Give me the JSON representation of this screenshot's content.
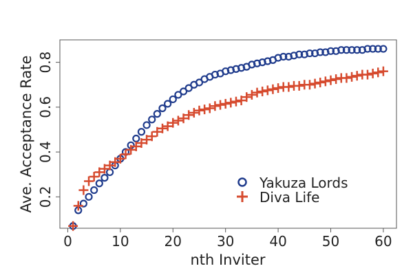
{
  "chart_data": {
    "type": "scatter",
    "xlabel": "nth Inviter",
    "ylabel": "Ave. Acceptance Rate",
    "xlim": [
      -1.5,
      62.5
    ],
    "ylim": [
      0.06,
      0.9
    ],
    "xticks": [
      0,
      10,
      20,
      30,
      40,
      50,
      60
    ],
    "yticks": [
      0.2,
      0.4,
      0.6,
      0.8
    ],
    "xtick_labels": [
      "0",
      "10",
      "20",
      "30",
      "40",
      "50",
      "60"
    ],
    "ytick_labels": [
      "0.2",
      "0.4",
      "0.6",
      "0.8"
    ],
    "legend_position": "bottom-right",
    "grid": false,
    "series": [
      {
        "name": "Yakuza Lords",
        "marker": "circle",
        "color": "#1f3b8c",
        "x": [
          1,
          2,
          3,
          4,
          5,
          6,
          7,
          8,
          9,
          10,
          11,
          12,
          13,
          14,
          15,
          16,
          17,
          18,
          19,
          20,
          21,
          22,
          23,
          24,
          25,
          26,
          27,
          28,
          29,
          30,
          31,
          32,
          33,
          34,
          35,
          36,
          37,
          38,
          39,
          40,
          41,
          42,
          43,
          44,
          45,
          46,
          47,
          48,
          49,
          50,
          51,
          52,
          53,
          54,
          55,
          56,
          57,
          58,
          59,
          60
        ],
        "y": [
          0.07,
          0.14,
          0.17,
          0.2,
          0.23,
          0.26,
          0.285,
          0.31,
          0.34,
          0.37,
          0.4,
          0.43,
          0.46,
          0.49,
          0.52,
          0.545,
          0.57,
          0.595,
          0.615,
          0.635,
          0.655,
          0.67,
          0.685,
          0.7,
          0.71,
          0.725,
          0.735,
          0.745,
          0.75,
          0.76,
          0.765,
          0.77,
          0.775,
          0.78,
          0.79,
          0.795,
          0.8,
          0.805,
          0.81,
          0.82,
          0.825,
          0.825,
          0.83,
          0.835,
          0.835,
          0.84,
          0.84,
          0.845,
          0.845,
          0.85,
          0.85,
          0.855,
          0.855,
          0.855,
          0.855,
          0.855,
          0.86,
          0.86,
          0.86,
          0.86
        ]
      },
      {
        "name": "Diva Life",
        "marker": "plus",
        "color": "#d64a2e",
        "x": [
          1,
          2,
          3,
          4,
          5,
          6,
          7,
          8,
          9,
          10,
          11,
          12,
          13,
          14,
          15,
          16,
          17,
          18,
          19,
          20,
          21,
          22,
          23,
          24,
          25,
          26,
          27,
          28,
          29,
          30,
          31,
          32,
          33,
          34,
          35,
          36,
          37,
          38,
          39,
          40,
          41,
          42,
          43,
          44,
          45,
          46,
          47,
          48,
          49,
          50,
          51,
          52,
          53,
          54,
          55,
          56,
          57,
          58,
          59,
          60
        ],
        "y": [
          0.07,
          0.16,
          0.23,
          0.27,
          0.29,
          0.31,
          0.325,
          0.34,
          0.355,
          0.37,
          0.39,
          0.41,
          0.425,
          0.44,
          0.455,
          0.47,
          0.49,
          0.505,
          0.515,
          0.53,
          0.54,
          0.55,
          0.565,
          0.575,
          0.585,
          0.59,
          0.595,
          0.605,
          0.61,
          0.615,
          0.62,
          0.625,
          0.63,
          0.645,
          0.655,
          0.665,
          0.67,
          0.675,
          0.68,
          0.685,
          0.69,
          0.69,
          0.695,
          0.695,
          0.7,
          0.7,
          0.705,
          0.71,
          0.715,
          0.72,
          0.725,
          0.73,
          0.73,
          0.735,
          0.74,
          0.745,
          0.745,
          0.75,
          0.755,
          0.76
        ]
      }
    ]
  }
}
